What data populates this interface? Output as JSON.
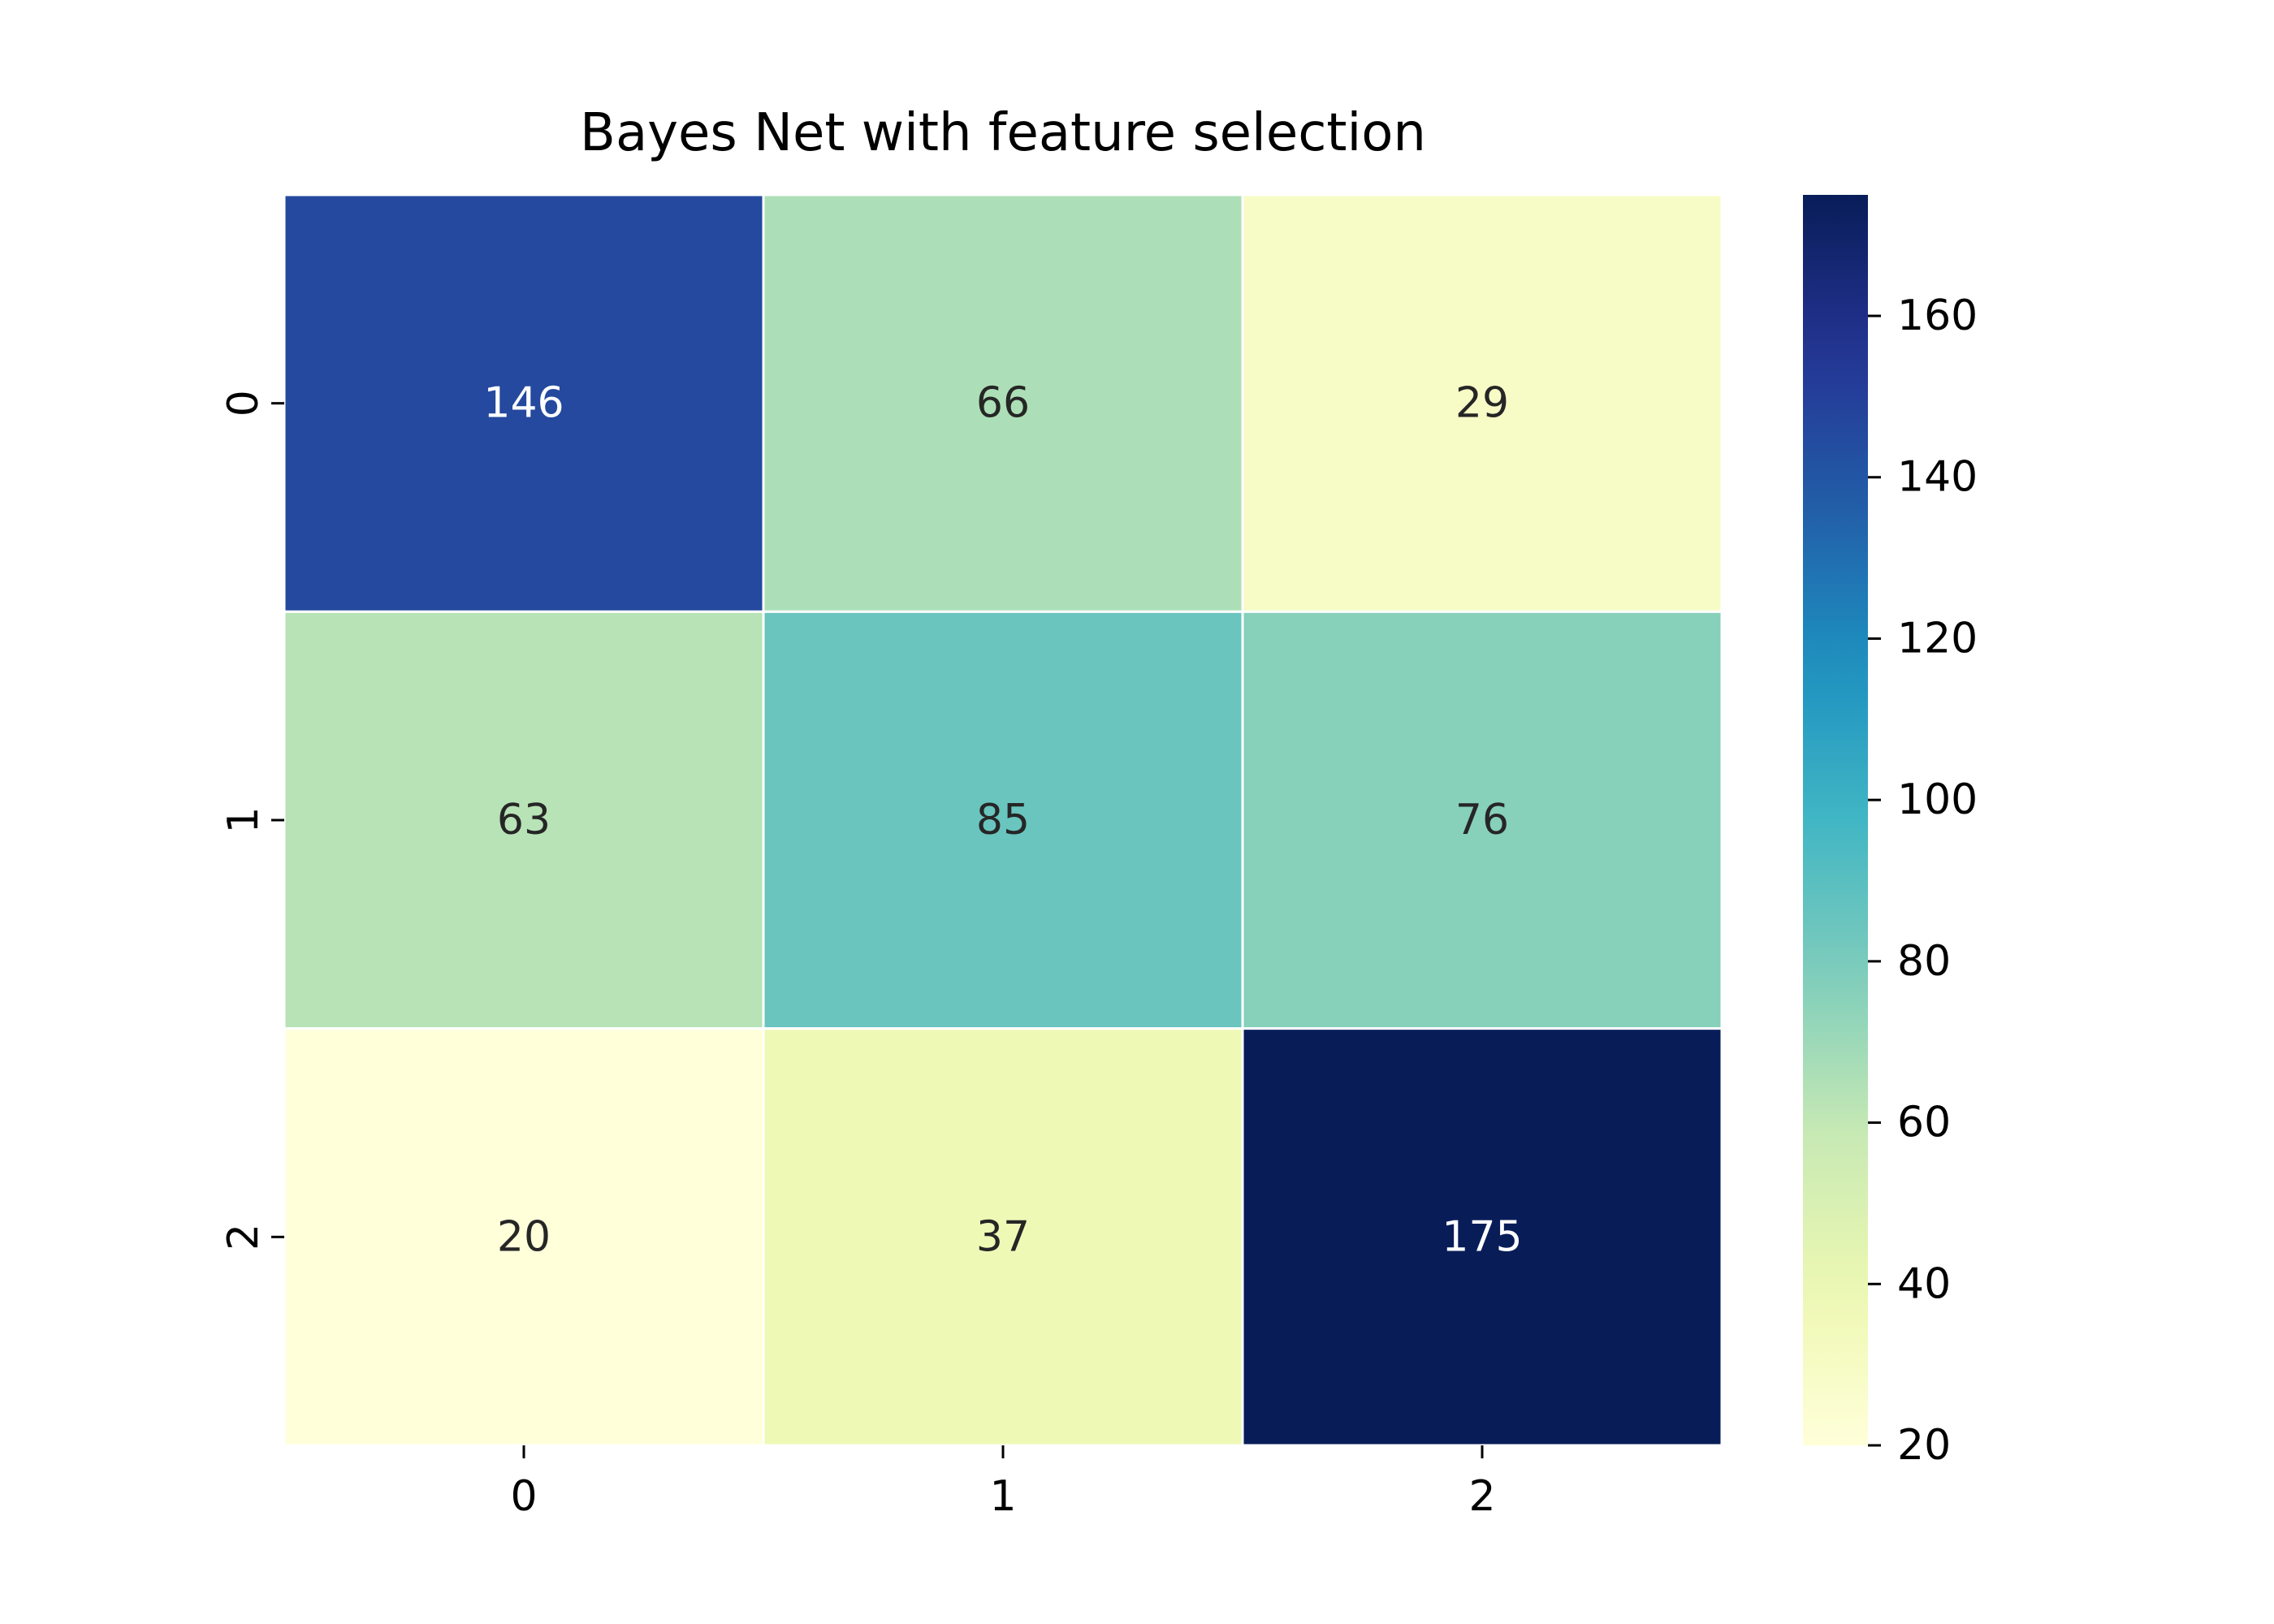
{
  "chart_data": {
    "type": "heatmap",
    "title": "Bayes Net with feature selection",
    "x_categories": [
      "0",
      "1",
      "2"
    ],
    "y_categories": [
      "0",
      "1",
      "2"
    ],
    "values": [
      [
        146,
        66,
        29
      ],
      [
        63,
        85,
        76
      ],
      [
        20,
        37,
        175
      ]
    ],
    "colormap": "YlGnBu",
    "colorbar": {
      "min": 20,
      "max": 175,
      "ticks": [
        20,
        40,
        60,
        80,
        100,
        120,
        140,
        160
      ]
    },
    "annotations": true,
    "cell_border_color": "#ffffff"
  }
}
